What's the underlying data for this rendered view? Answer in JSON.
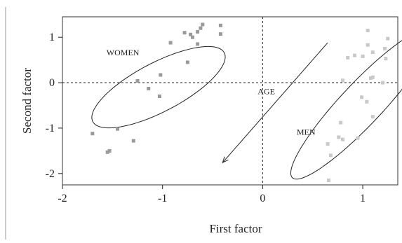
{
  "chart_data": {
    "type": "scatter",
    "xlabel": "First factor",
    "ylabel": "Second factor",
    "xlim": [
      -2.0,
      1.35
    ],
    "ylim": [
      -2.25,
      1.45
    ],
    "xticks": [
      -2,
      -1,
      0,
      1
    ],
    "xtick_labels": [
      "-2",
      "-1",
      "0",
      "1"
    ],
    "yticks": [
      1,
      0,
      -1,
      -2
    ],
    "ytick_labels": [
      "1",
      "0",
      "-1",
      "-2"
    ],
    "reference_lines": {
      "x": 0,
      "y": 0,
      "style": "dashed"
    },
    "colors": {
      "women": "#9a9a9a",
      "men": "#c9c9c9",
      "ink": "#222222"
    },
    "series": [
      {
        "name": "WOMEN",
        "points": [
          [
            -0.42,
            1.26
          ],
          [
            -0.42,
            1.07
          ],
          [
            -0.6,
            1.28
          ],
          [
            -0.62,
            1.2
          ],
          [
            -0.65,
            1.12
          ],
          [
            -0.7,
            1.0
          ],
          [
            -0.72,
            1.06
          ],
          [
            -0.78,
            1.1
          ],
          [
            -0.92,
            0.88
          ],
          [
            -0.65,
            0.85
          ],
          [
            -0.75,
            0.45
          ],
          [
            -1.02,
            0.17
          ],
          [
            -1.25,
            0.04
          ],
          [
            -1.14,
            -0.13
          ],
          [
            -1.03,
            -0.3
          ],
          [
            -1.45,
            -1.02
          ],
          [
            -1.29,
            -1.28
          ],
          [
            -1.55,
            -1.53
          ],
          [
            -1.53,
            -1.5
          ],
          [
            -1.7,
            -1.12
          ]
        ]
      },
      {
        "name": "MEN",
        "points": [
          [
            1.05,
            1.15
          ],
          [
            1.25,
            0.97
          ],
          [
            1.05,
            0.83
          ],
          [
            1.22,
            0.75
          ],
          [
            1.1,
            0.67
          ],
          [
            0.92,
            0.6
          ],
          [
            1.0,
            0.58
          ],
          [
            0.85,
            0.55
          ],
          [
            1.23,
            0.53
          ],
          [
            1.1,
            0.12
          ],
          [
            1.08,
            0.1
          ],
          [
            0.8,
            0.05
          ],
          [
            1.2,
            0.0
          ],
          [
            0.99,
            -0.32
          ],
          [
            1.04,
            -0.42
          ],
          [
            1.1,
            -0.75
          ],
          [
            0.78,
            -0.88
          ],
          [
            0.76,
            -1.2
          ],
          [
            0.8,
            -1.25
          ],
          [
            0.95,
            -1.22
          ],
          [
            0.65,
            -1.35
          ],
          [
            0.68,
            -1.6
          ],
          [
            0.66,
            -2.15
          ]
        ]
      }
    ],
    "annotations": [
      {
        "text": "WOMEN",
        "x": -1.56,
        "y": 0.6
      },
      {
        "text": "MEN",
        "x": 0.34,
        "y": -1.15
      },
      {
        "text": "AGE",
        "x": -0.05,
        "y": -0.25
      }
    ],
    "age_arrow": {
      "from": [
        0.65,
        0.88
      ],
      "to": [
        -0.4,
        -1.76
      ]
    },
    "ellipses": [
      {
        "group": "WOMEN",
        "center": [
          -1.04,
          -0.1
        ],
        "radius_x": 1.05,
        "radius_y": 0.38,
        "angle_deg": 56
      },
      {
        "group": "MEN",
        "center": [
          0.99,
          -0.47
        ],
        "radius_x": 1.78,
        "radius_y": 0.26,
        "angle_deg": 68
      }
    ]
  }
}
